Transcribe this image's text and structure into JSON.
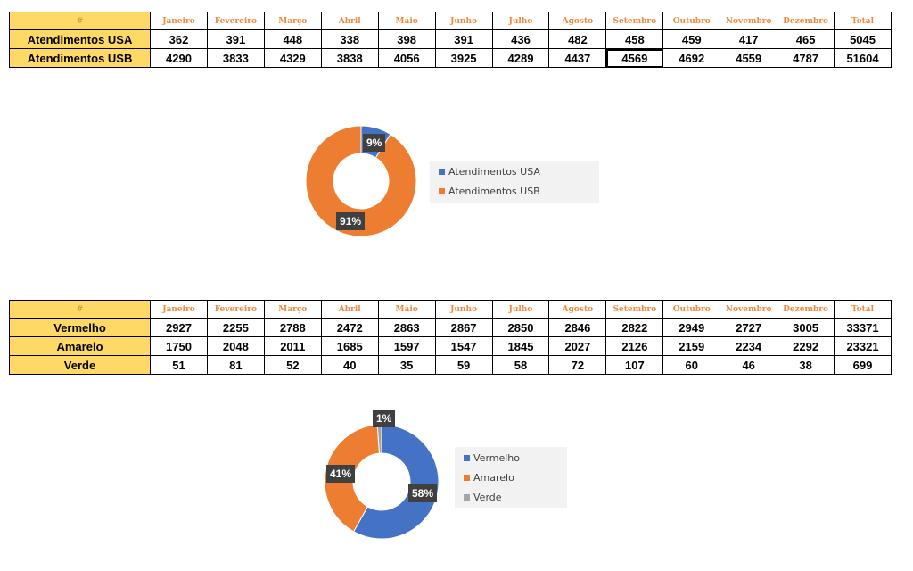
{
  "months": [
    "Janeiro",
    "Fevereiro",
    "Março",
    "Abril",
    "Maio",
    "Junho",
    "Julho",
    "Agosto",
    "Setembro",
    "Outubro",
    "Novembro",
    "Dezembro",
    "Total"
  ],
  "table1": {
    "corner": "#",
    "rows": [
      {
        "label": "Atendimentos USA",
        "values": [
          "362",
          "391",
          "448",
          "338",
          "398",
          "391",
          "436",
          "482",
          "458",
          "459",
          "417",
          "465",
          "5045"
        ]
      },
      {
        "label": "Atendimentos USB",
        "values": [
          "4290",
          "3833",
          "4329",
          "3838",
          "4056",
          "3925",
          "4289",
          "4437",
          "4569",
          "4692",
          "4559",
          "4787",
          "51604"
        ]
      }
    ]
  },
  "table2": {
    "corner": "#",
    "rows": [
      {
        "label": "Vermelho",
        "values": [
          "2927",
          "2255",
          "2788",
          "2472",
          "2863",
          "2867",
          "2850",
          "2846",
          "2822",
          "2949",
          "2727",
          "3005",
          "33371"
        ]
      },
      {
        "label": "Amarelo",
        "values": [
          "1750",
          "2048",
          "2011",
          "1685",
          "1597",
          "1547",
          "1845",
          "2027",
          "2126",
          "2159",
          "2234",
          "2292",
          "23321"
        ]
      },
      {
        "label": "Verde",
        "values": [
          "51",
          "81",
          "52",
          "40",
          "35",
          "59",
          "58",
          "72",
          "107",
          "60",
          "46",
          "38",
          "699"
        ]
      }
    ]
  },
  "chart1": {
    "slices": [
      {
        "name": "Atendimentos USA",
        "value": 5045,
        "label": "9%",
        "color": "#4472c4"
      },
      {
        "name": "Atendimentos USB",
        "value": 51604,
        "label": "91%",
        "color": "#ed7d31"
      }
    ]
  },
  "chart2": {
    "slices": [
      {
        "name": "Vermelho",
        "value": 33371,
        "label": "58%",
        "color": "#4472c4"
      },
      {
        "name": "Amarelo",
        "value": 23321,
        "label": "41%",
        "color": "#ed7d31"
      },
      {
        "name": "Verde",
        "value": 699,
        "label": "1%",
        "color": "#a5a5a5"
      }
    ]
  },
  "chart_data": [
    {
      "type": "pie",
      "categories": [
        "Atendimentos USA",
        "Atendimentos USB"
      ],
      "values": [
        5045,
        51604
      ],
      "data_labels": [
        "9%",
        "91%"
      ],
      "legend": "right"
    },
    {
      "type": "pie",
      "categories": [
        "Vermelho",
        "Amarelo",
        "Verde"
      ],
      "values": [
        33371,
        23321,
        699
      ],
      "data_labels": [
        "58%",
        "41%",
        "1%"
      ],
      "legend": "right"
    }
  ]
}
